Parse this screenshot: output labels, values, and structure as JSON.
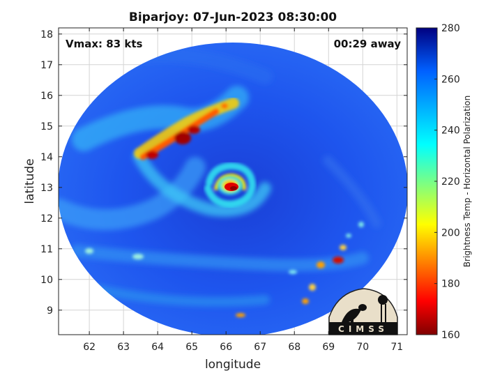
{
  "title": "Biparjoy: 07-Jun-2023 08:30:00",
  "vmax_label": "Vmax: 83 kts",
  "time_away_label": "00:29 away",
  "xlabel": "longitude",
  "ylabel": "latitude",
  "x_ticks": [
    "62",
    "63",
    "64",
    "65",
    "66",
    "67",
    "68",
    "69",
    "70",
    "71"
  ],
  "y_ticks": [
    "9",
    "10",
    "11",
    "12",
    "13",
    "14",
    "15",
    "16",
    "17",
    "18"
  ],
  "colorbar": {
    "label": "Brightness Temp - Horizontal Polarization",
    "ticks": [
      "160",
      "180",
      "200",
      "220",
      "240",
      "260",
      "280"
    ],
    "range": [
      160,
      280
    ]
  },
  "logo_text": "CIMSS",
  "storm_center": {
    "lon": 66.2,
    "lat": 13.0
  },
  "map": {
    "lon_range": [
      61.1,
      71.3
    ],
    "lat_range": [
      8.2,
      18.2
    ],
    "grid": true
  }
}
